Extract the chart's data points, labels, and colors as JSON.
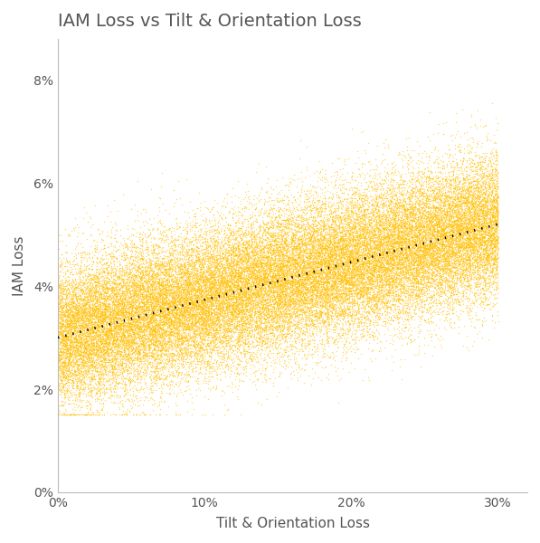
{
  "title": "IAM Loss vs Tilt & Orientation Loss",
  "xlabel": "Tilt & Orientation Loss",
  "ylabel": "IAM Loss",
  "dot_color": "#FFC107",
  "trend_color": "#000000",
  "background_color": "#ffffff",
  "n_points": 50000,
  "xlim": [
    0.0,
    0.32
  ],
  "ylim": [
    0.0,
    0.088
  ],
  "xticks": [
    0.0,
    0.1,
    0.2,
    0.3
  ],
  "yticks": [
    0.0,
    0.02,
    0.04,
    0.06,
    0.08
  ],
  "trend_x0": 0.0,
  "trend_x1": 0.3,
  "trend_y0": 0.03,
  "trend_y1": 0.052,
  "title_fontsize": 14,
  "axis_label_fontsize": 11,
  "tick_fontsize": 10,
  "dot_size": 1.0,
  "dot_alpha": 0.6,
  "trend_linewidth": 2.0,
  "seed": 42,
  "spine_color": "#bbbbbb",
  "text_color": "#555555"
}
